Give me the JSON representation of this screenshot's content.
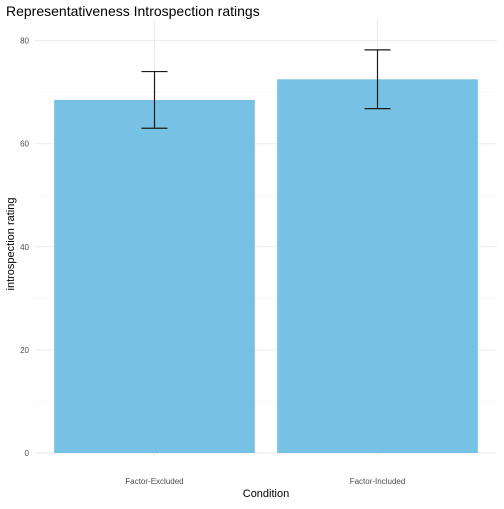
{
  "chart_data": {
    "type": "bar",
    "title": "Representativeness Introspection ratings",
    "xlabel": "Condition",
    "ylabel": "introspection rating",
    "categories": [
      "Factor-Excluded",
      "Factor-Included"
    ],
    "values": [
      68.5,
      72.5
    ],
    "error_low": [
      63.0,
      66.8
    ],
    "error_high": [
      74.0,
      78.2
    ],
    "ylim": [
      0,
      84
    ],
    "yticks": [
      0,
      20,
      40,
      60,
      80
    ],
    "grid": true,
    "legend": "none",
    "colors": {
      "bar": "#77c1e4",
      "errorbar": "#1a1a1a",
      "grid_major": "#ebebeb",
      "grid_minor": "#f4f4f4",
      "text": "#000000",
      "tick_text": "#4d4d4d"
    }
  }
}
